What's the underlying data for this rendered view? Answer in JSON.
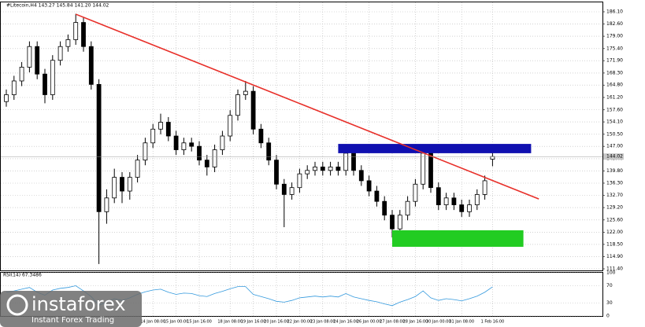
{
  "chart_data": {
    "type": "candlestick",
    "title": "#Litecoin,H4  143.27 145.84 141.20 144.02",
    "candles": [
      [
        160,
        163.5,
        158.5,
        162
      ],
      [
        162,
        167.5,
        160.5,
        166
      ],
      [
        166,
        171.5,
        164.5,
        170
      ],
      [
        170,
        177.5,
        168.5,
        176
      ],
      [
        176,
        177.5,
        166.5,
        168
      ],
      [
        168,
        169.5,
        159.5,
        162
      ],
      [
        162,
        173.5,
        160.5,
        172
      ],
      [
        172,
        177.5,
        170.5,
        176
      ],
      [
        176,
        179.5,
        174.5,
        178
      ],
      [
        178,
        185.5,
        176.5,
        183
      ],
      [
        183,
        184.5,
        174.5,
        176
      ],
      [
        176,
        177.5,
        163.5,
        165
      ],
      [
        165,
        166.5,
        112.8,
        128
      ],
      [
        128,
        134.5,
        124.5,
        132
      ],
      [
        132,
        140.5,
        130.5,
        138
      ],
      [
        138,
        139.5,
        130.5,
        134
      ],
      [
        134,
        139.5,
        131.5,
        138
      ],
      [
        138,
        144.5,
        136.5,
        143
      ],
      [
        143,
        149.5,
        141.5,
        148
      ],
      [
        148,
        153.5,
        146.5,
        152
      ],
      [
        152,
        156.5,
        150.5,
        154
      ],
      [
        154,
        155.5,
        148.5,
        150
      ],
      [
        150,
        151.5,
        144.5,
        146
      ],
      [
        146,
        149.5,
        144.5,
        148
      ],
      [
        148,
        149.5,
        145.5,
        147
      ],
      [
        147,
        148.5,
        141.5,
        143
      ],
      [
        143,
        144.5,
        138.5,
        141
      ],
      [
        141,
        147.5,
        139.5,
        146
      ],
      [
        146,
        151.5,
        144.5,
        150
      ],
      [
        150,
        157.5,
        148.5,
        156
      ],
      [
        156,
        163.5,
        154.5,
        162
      ],
      [
        162,
        166,
        160.5,
        163
      ],
      [
        163,
        164.5,
        150.5,
        152
      ],
      [
        152,
        153.5,
        146.5,
        148
      ],
      [
        148,
        149.5,
        141.5,
        143
      ],
      [
        143,
        144.5,
        134.5,
        136
      ],
      [
        136,
        137.5,
        123.5,
        133
      ],
      [
        133,
        136.5,
        131.5,
        135
      ],
      [
        135,
        140.5,
        133.5,
        139
      ],
      [
        139,
        141.5,
        137.5,
        140
      ],
      [
        140,
        142.5,
        138.5,
        141
      ],
      [
        141,
        142.5,
        138.5,
        140
      ],
      [
        140,
        142.5,
        138.5,
        141
      ],
      [
        141,
        142.5,
        138.5,
        140
      ],
      [
        140,
        147,
        138.5,
        145
      ],
      [
        145,
        146.5,
        138.5,
        140
      ],
      [
        140,
        141.5,
        135.5,
        137
      ],
      [
        137,
        138.5,
        132.5,
        134
      ],
      [
        134,
        135.5,
        129.5,
        131
      ],
      [
        131,
        132.5,
        125.5,
        127
      ],
      [
        127,
        128.5,
        120.5,
        123
      ],
      [
        123,
        128.5,
        121.5,
        127
      ],
      [
        127,
        132.5,
        125.5,
        131
      ],
      [
        131,
        137.5,
        129.5,
        136
      ],
      [
        136,
        147.5,
        134.5,
        145
      ],
      [
        145,
        146.5,
        133.5,
        135
      ],
      [
        135,
        136.5,
        128.5,
        130
      ],
      [
        130,
        133.5,
        128.5,
        132
      ],
      [
        132,
        133.5,
        128.5,
        130
      ],
      [
        130,
        131.5,
        126.5,
        128
      ],
      [
        128,
        131.5,
        126.5,
        130
      ],
      [
        130,
        134.5,
        128.5,
        133
      ],
      [
        133,
        138.5,
        131.5,
        137
      ],
      [
        143.27,
        145.84,
        141.2,
        144.02
      ]
    ],
    "categories": [
      null,
      null,
      null,
      null,
      null,
      null,
      null,
      null,
      null,
      null,
      null,
      null,
      null,
      null,
      null,
      null,
      null,
      null,
      null,
      "14 Jan 08:00",
      null,
      null,
      "15 Jan 00:00",
      null,
      null,
      "15 Jan 16:00",
      null,
      null,
      null,
      "18 Jan 08:00",
      null,
      null,
      "19 Jan 16:00",
      null,
      null,
      "20 Jan 16:00",
      null,
      null,
      "22 Jan 00:00",
      null,
      null,
      "23 Jan 08:00",
      null,
      null,
      "24 Jan 16:00",
      null,
      null,
      "26 Jan 00:00",
      null,
      null,
      "27 Jan 08:00",
      null,
      null,
      "28 Jan 16:00",
      null,
      null,
      "30 Jan 00:00",
      null,
      null,
      "31 Jan 08:00",
      null,
      null,
      null,
      "1 Feb 16:00"
    ],
    "ylim": [
      110.94,
      188.84
    ],
    "yticks": [
      {
        "value": 186.1,
        "label": "186.10"
      },
      {
        "value": 182.6,
        "label": "182.60"
      },
      {
        "value": 179,
        "label": "179.00"
      },
      {
        "value": 175.4,
        "label": "175.40"
      },
      {
        "value": 171.9,
        "label": "171.90"
      },
      {
        "value": 168.3,
        "label": "168.30"
      },
      {
        "value": 164.8,
        "label": "164.80"
      },
      {
        "value": 161.2,
        "label": "161.20"
      },
      {
        "value": 157.6,
        "label": "157.60"
      },
      {
        "value": 154.1,
        "label": "154.10"
      },
      {
        "value": 150.5,
        "label": "150.50"
      },
      {
        "value": 147,
        "label": "147.00"
      },
      {
        "value": 143.4,
        "label": "143.40"
      },
      {
        "value": 139.8,
        "label": "139.80"
      },
      {
        "value": 136.3,
        "label": "136.30"
      },
      {
        "value": 132.7,
        "label": "132.70"
      },
      {
        "value": 129.2,
        "label": "129.20"
      },
      {
        "value": 125.6,
        "label": "125.60"
      },
      {
        "value": 122,
        "label": "122.00"
      },
      {
        "value": 118.5,
        "label": "118.50"
      },
      {
        "value": 114.9,
        "label": "114.90"
      },
      {
        "value": 111.4,
        "label": "111.40"
      }
    ],
    "grid": true,
    "trendline": {
      "from": [
        9,
        185.4
      ],
      "to": [
        69,
        131.7
      ],
      "color": "#e8302a"
    },
    "resistance_box": {
      "from": [
        43,
        147.7
      ],
      "to": [
        68,
        145.0
      ],
      "color": "#1010b0"
    },
    "support_box": {
      "from": [
        50,
        122.6
      ],
      "to": [
        67,
        117.8
      ],
      "color": "#22cc22"
    },
    "rsi": {
      "title": "RSI(14) 67.3486",
      "color": "#3399dd",
      "values": [
        55,
        58,
        62,
        66,
        55,
        48,
        60,
        64,
        66,
        70,
        58,
        45,
        25,
        32,
        40,
        36,
        42,
        50,
        56,
        60,
        62,
        55,
        50,
        53,
        52,
        47,
        45,
        52,
        57,
        63,
        68,
        68,
        50,
        45,
        40,
        34,
        32,
        36,
        42,
        44,
        46,
        44,
        46,
        44,
        52,
        44,
        40,
        36,
        33,
        28,
        24,
        32,
        38,
        45,
        58,
        42,
        36,
        40,
        38,
        35,
        40,
        46,
        55,
        67.3486
      ],
      "ylim": [
        0,
        100
      ],
      "yticks": [
        100,
        70,
        30,
        0
      ]
    },
    "logo": {
      "name": "instaforex",
      "tagline": "Instant Forex Trading"
    }
  }
}
